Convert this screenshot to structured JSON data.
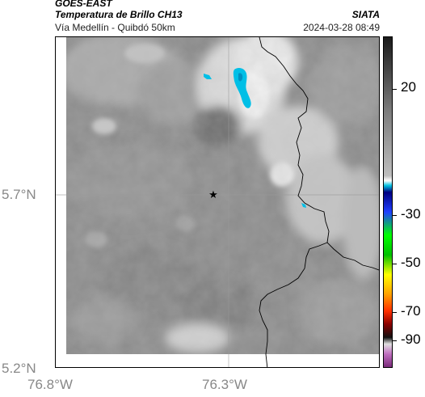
{
  "header": {
    "satellite": "GOES-EAST",
    "product": "Temperatura de Brillo CH13",
    "region": "Vía Medellín - Quibdó 50km",
    "agency": "SIATA",
    "timestamp": "2024-03-28 08:49"
  },
  "map": {
    "lat_ticks": [
      "5.7°N",
      "5.2°N"
    ],
    "lon_ticks": [
      "76.8°W",
      "76.3°W"
    ],
    "marker": "star",
    "colors": {
      "cloud_top_cyan": "#00bfe6",
      "coastline": "#000000",
      "gridline": "#9a9a9a"
    }
  },
  "colorbar": {
    "labels": [
      "20",
      "-30",
      "-50",
      "-70",
      "-90"
    ],
    "colors": [
      "#7a2a7a",
      "#c070c0",
      "#e0e0e0",
      "#111111",
      "#8a0000",
      "#ff3000",
      "#ffa000",
      "#ffff00",
      "#00c000",
      "#00ff00",
      "#2040ff",
      "#000080",
      "#00c0e0",
      "#ffffff",
      "#bdbdbd",
      "#7a7a7a",
      "#1a1a1a"
    ]
  }
}
